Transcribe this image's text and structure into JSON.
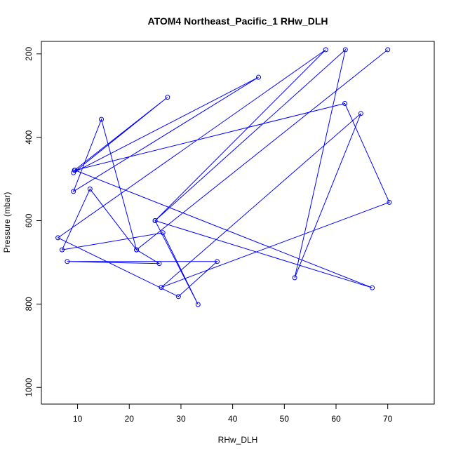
{
  "chart_data": {
    "type": "line",
    "title": "ATOM4 Northeast_Pacific_1 RHw_DLH",
    "xlabel": "RHw_DLH",
    "ylabel": "Pressure (mbar)",
    "xlim": [
      3,
      79
    ],
    "ylim": [
      1040,
      170
    ],
    "y_inverted": true,
    "grid": false,
    "legend": "none",
    "color": "#0000ff",
    "xticks": [
      10,
      20,
      30,
      40,
      50,
      60,
      70
    ],
    "yticks": [
      200,
      400,
      600,
      800,
      1000
    ],
    "x": [
      9.4,
      27.4,
      9.2,
      45.0,
      9.2,
      14.6,
      21.4,
      12.4,
      7.0,
      26.5,
      33.3,
      25.0,
      67.0,
      9.5,
      61.7,
      70.3,
      26.2,
      64.8,
      52.0,
      61.8,
      25.0,
      58.0,
      6.2,
      29.5,
      37.0,
      8.0,
      25.8,
      21.4,
      70.0
    ],
    "y": [
      479,
      304,
      485,
      256,
      530,
      357,
      670,
      524,
      670,
      629,
      801,
      600,
      761,
      479,
      319,
      556,
      760,
      343,
      737,
      190,
      600,
      190,
      641,
      782,
      698,
      698,
      703,
      670,
      190
    ]
  }
}
